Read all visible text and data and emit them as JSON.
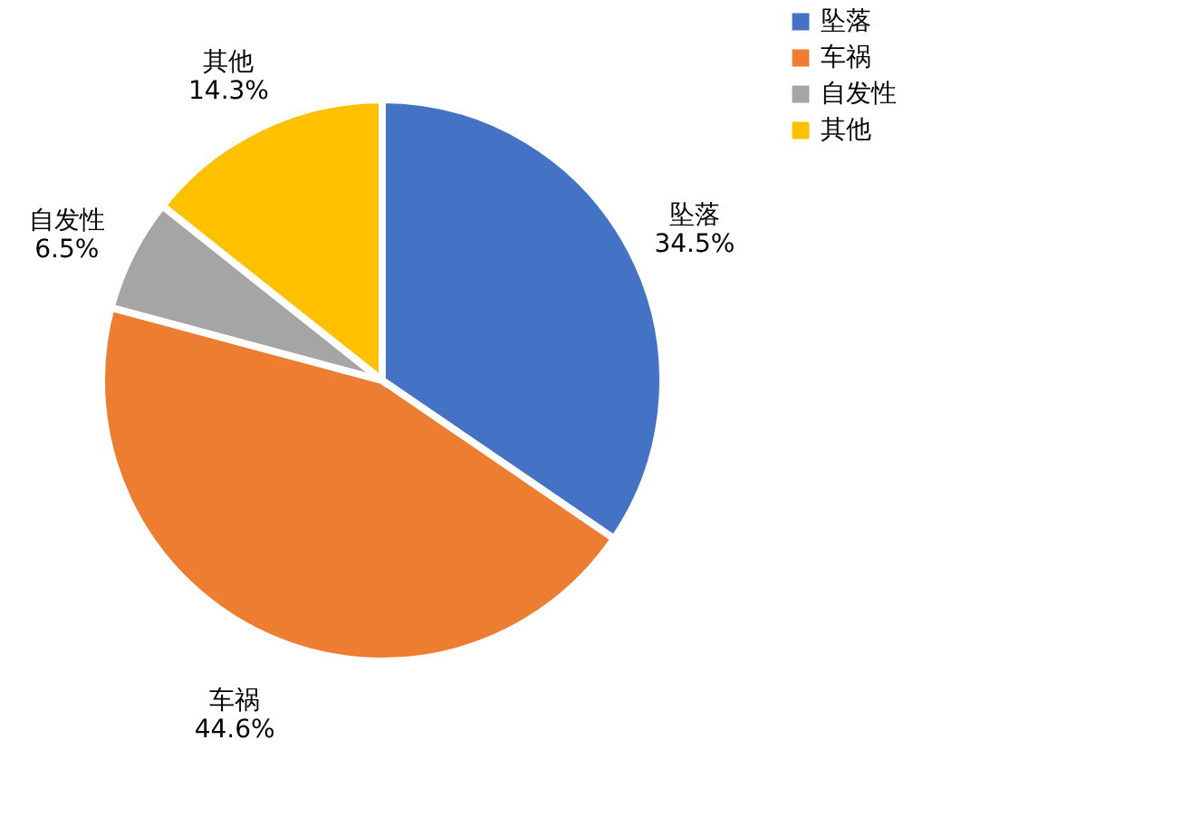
{
  "chart_data": {
    "type": "pie",
    "categories": [
      "坠落",
      "车祸",
      "自发性",
      "其他"
    ],
    "values": [
      34.5,
      44.6,
      6.5,
      14.3
    ],
    "colors": [
      "#4472c4",
      "#ed7d31",
      "#a5a5a5",
      "#ffc000"
    ],
    "value_labels": [
      "34.5%",
      "44.6%",
      "6.5%",
      "14.3%"
    ],
    "legend": "right"
  }
}
